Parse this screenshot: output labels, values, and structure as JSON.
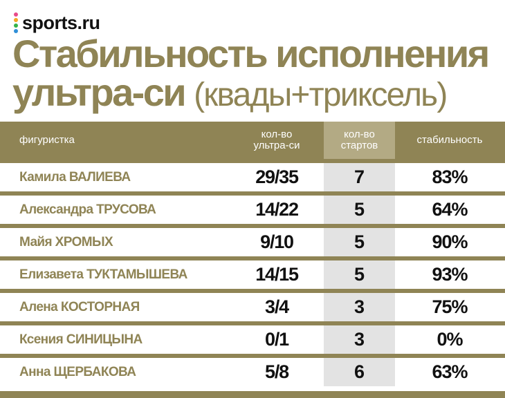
{
  "brand": {
    "name": "sports.ru",
    "dot_colors": [
      "#e84b8a",
      "#f5a623",
      "#35b34a",
      "#2f8fd8"
    ]
  },
  "title": {
    "line1": "Стабильность исполнения",
    "line2_main": "ультра-си",
    "line2_sub": "(квады+триксель)"
  },
  "colors": {
    "accent": "#8f8455",
    "highlight_column": "#e3e3e3",
    "header_highlight": "#b3aa84"
  },
  "chart_data": {
    "type": "table",
    "columns": [
      "фигуристка",
      "кол-во ультра-си",
      "кол-во стартов",
      "стабильность"
    ],
    "rows": [
      {
        "name": "Камила ВАЛИЕВА",
        "ultra": "29/35",
        "starts": "7",
        "stability": "83%"
      },
      {
        "name": "Александра ТРУСОВА",
        "ultra": "14/22",
        "starts": "5",
        "stability": "64%"
      },
      {
        "name": "Майя ХРОМЫХ",
        "ultra": "9/10",
        "starts": "5",
        "stability": "90%"
      },
      {
        "name": "Елизавета ТУКТАМЫШЕВА",
        "ultra": "14/15",
        "starts": "5",
        "stability": "93%"
      },
      {
        "name": "Алена КОСТОРНАЯ",
        "ultra": "3/4",
        "starts": "3",
        "stability": "75%"
      },
      {
        "name": "Ксения СИНИЦЫНА",
        "ultra": "0/1",
        "starts": "3",
        "stability": "0%"
      },
      {
        "name": "Анна ЩЕРБАКОВА",
        "ultra": "5/8",
        "starts": "6",
        "stability": "63%"
      }
    ]
  },
  "header": {
    "name": "фигуристка",
    "ultra_l1": "кол-во",
    "ultra_l2": "ультра-си",
    "starts_l1": "кол-во",
    "starts_l2": "стартов",
    "stability": "стабильность"
  }
}
